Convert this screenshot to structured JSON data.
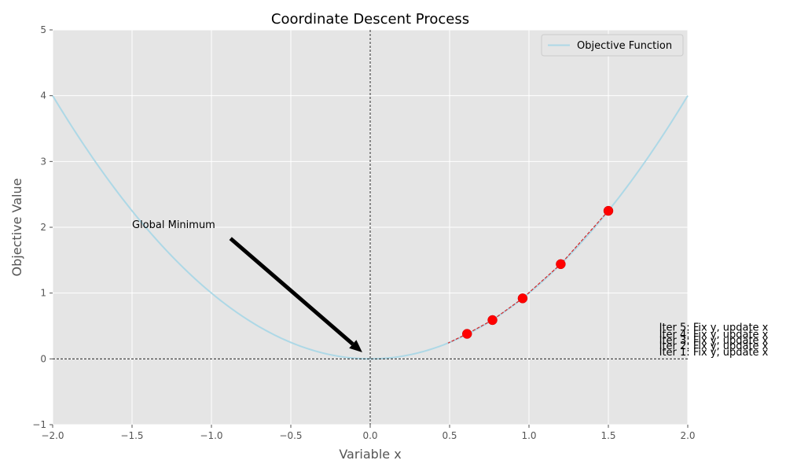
{
  "chart_data": {
    "type": "line",
    "title": "Coordinate Descent Process",
    "xlabel": "Variable x",
    "ylabel": "Objective Value",
    "xlim": [
      -2.0,
      2.0
    ],
    "ylim": [
      -1,
      5
    ],
    "grid": true,
    "background_color": "#e5e5e5",
    "xticks": [
      "−2.0",
      "−1.5",
      "−1.0",
      "−0.5",
      "0.0",
      "0.5",
      "1.0",
      "1.5",
      "2.0"
    ],
    "xtick_values": [
      -2.0,
      -1.5,
      -1.0,
      -0.5,
      0.0,
      0.5,
      1.0,
      1.5,
      2.0
    ],
    "yticks": [
      "−1",
      "0",
      "1",
      "2",
      "3",
      "4",
      "5"
    ],
    "ytick_values": [
      -1,
      0,
      1,
      2,
      3,
      4,
      5
    ],
    "legend": {
      "placement": "top-right",
      "entries": [
        "Objective Function"
      ]
    },
    "series": [
      {
        "name": "Objective Function",
        "function": "x^2",
        "color": "#add8e6",
        "x": [
          -2.0,
          -1.75,
          -1.5,
          -1.25,
          -1.0,
          -0.75,
          -0.5,
          -0.25,
          0.0,
          0.25,
          0.5,
          0.75,
          1.0,
          1.25,
          1.5,
          1.75,
          2.0
        ],
        "y": [
          4.0,
          3.0625,
          2.25,
          1.5625,
          1.0,
          0.5625,
          0.25,
          0.0625,
          0.0,
          0.0625,
          0.25,
          0.5625,
          1.0,
          1.5625,
          2.25,
          3.0625,
          4.0
        ]
      },
      {
        "color": "#ff0000",
        "x": [
          1.5,
          1.2,
          0.96,
          0.77,
          0.61
        ],
        "y": [
          2.25,
          1.44,
          0.92,
          0.59,
          0.38
        ]
      },
      {
        "color": "#d62728",
        "style": "dashed",
        "x": [
          1.5,
          1.2,
          0.96,
          0.77,
          0.61,
          0.49
        ],
        "y": [
          2.25,
          1.44,
          0.92,
          0.59,
          0.38,
          0.24
        ]
      }
    ],
    "annotations": [
      {
        "text": "Global Minimum",
        "text_x": -1.5,
        "text_y": 2.0,
        "arrow_from_x": -0.88,
        "arrow_from_y": 1.83,
        "arrow_to_x": -0.05,
        "arrow_to_y": 0.1
      },
      {
        "text": "Iter 1: Fix y, update x",
        "x": 1.82,
        "y": 0.05
      },
      {
        "text": "Iter 2: Fix y, update x",
        "x": 1.82,
        "y": 0.15
      },
      {
        "text": "Iter 3: Fix y, update x",
        "x": 1.82,
        "y": 0.23
      },
      {
        "text": "Iter 4: Fix y, update x",
        "x": 1.82,
        "y": 0.32
      },
      {
        "text": "Iter 5: Fix y, update x",
        "x": 1.82,
        "y": 0.43
      }
    ],
    "reference_lines": [
      {
        "axis": "x",
        "value": 0
      },
      {
        "axis": "y",
        "value": 0
      }
    ]
  }
}
